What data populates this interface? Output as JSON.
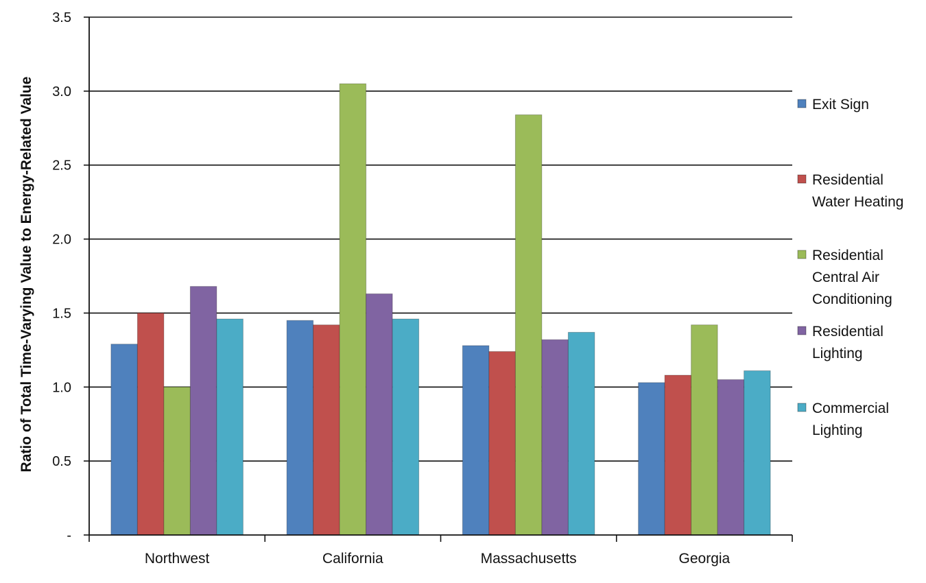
{
  "chart_data": {
    "type": "bar",
    "title": "",
    "xlabel": "",
    "ylabel": "Ratio of Total Time-Varying Value to Energy-Related Value",
    "ylim": [
      0,
      3.5
    ],
    "yticks": [
      0,
      0.5,
      1.0,
      1.5,
      2.0,
      2.5,
      3.0,
      3.5
    ],
    "ytick_labels": [
      "-",
      "0.5",
      "1.0",
      "1.5",
      "2.0",
      "2.5",
      "3.0",
      "3.5"
    ],
    "grid": true,
    "legend_position": "right",
    "categories": [
      "Northwest",
      "California",
      "Massachusetts",
      "Georgia"
    ],
    "series": [
      {
        "name": "Exit Sign",
        "legend_lines": [
          "Exit Sign"
        ],
        "color": "#4F81BD",
        "values": [
          1.29,
          1.45,
          1.28,
          1.03
        ]
      },
      {
        "name": "Residential Water Heating",
        "legend_lines": [
          "Residential",
          "Water Heating"
        ],
        "color": "#C0504D",
        "values": [
          1.5,
          1.42,
          1.24,
          1.08
        ]
      },
      {
        "name": "Residential Central Air Conditioning",
        "legend_lines": [
          "Residential",
          "Central Air",
          "Conditioning"
        ],
        "color": "#9BBB59",
        "values": [
          1.0,
          3.05,
          2.84,
          1.42
        ]
      },
      {
        "name": "Residential Lighting",
        "legend_lines": [
          "Residential",
          "Lighting"
        ],
        "color": "#8064A2",
        "values": [
          1.68,
          1.63,
          1.32,
          1.05
        ]
      },
      {
        "name": "Commercial Lighting",
        "legend_lines": [
          "Commercial",
          "Lighting"
        ],
        "color": "#4BACC6",
        "values": [
          1.46,
          1.46,
          1.37,
          1.11
        ]
      }
    ]
  }
}
